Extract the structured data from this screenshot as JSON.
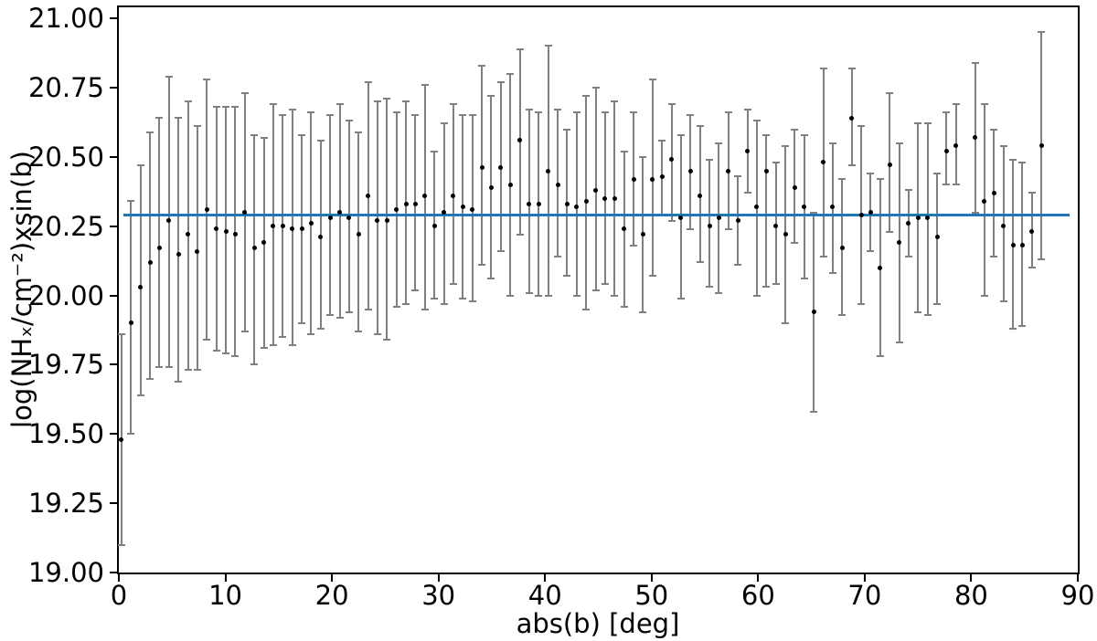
{
  "figure": {
    "background": "#ffffff",
    "spine_color": "#000000",
    "text_color": "#000000"
  },
  "chart_data": {
    "type": "scatter",
    "title": "",
    "xlabel": "abs(b) [deg]",
    "ylabel": "log(NHₓ/cm⁻²)xsin(b)",
    "xlim": [
      0,
      90
    ],
    "ylim": [
      19.0,
      21.04
    ],
    "grid": false,
    "legend": null,
    "x_axis": {
      "tick_values": [
        0,
        10,
        20,
        30,
        40,
        50,
        60,
        70,
        80,
        90
      ],
      "tick_labels": [
        "0",
        "10",
        "20",
        "30",
        "40",
        "50",
        "60",
        "70",
        "80",
        "90"
      ]
    },
    "y_axis": {
      "tick_values": [
        19.0,
        19.25,
        19.5,
        19.75,
        20.0,
        20.25,
        20.5,
        20.75,
        21.0
      ],
      "tick_labels": [
        "19.00",
        "19.25",
        "19.50",
        "19.75",
        "20.00",
        "20.25",
        "20.50",
        "20.75",
        "21.00"
      ]
    },
    "hline": {
      "value": 20.29,
      "color": "#1f77b4"
    },
    "style": {
      "marker_color": "#000000",
      "errorbar_color": "#808080",
      "marker": "point",
      "cap_style": "flat"
    },
    "points_format": [
      "x_deg",
      "y",
      "err_low",
      "err_high"
    ],
    "points": [
      [
        0.25,
        19.48,
        19.1,
        19.86
      ],
      [
        1.14,
        19.9,
        19.5,
        20.34
      ],
      [
        2.03,
        20.03,
        19.64,
        20.47
      ],
      [
        2.92,
        20.12,
        19.7,
        20.59
      ],
      [
        3.81,
        20.17,
        19.74,
        20.64
      ],
      [
        4.7,
        20.27,
        19.74,
        20.79
      ],
      [
        5.59,
        20.15,
        19.69,
        20.64
      ],
      [
        6.48,
        20.22,
        19.73,
        20.7
      ],
      [
        7.37,
        20.16,
        19.73,
        20.61
      ],
      [
        8.26,
        20.31,
        19.84,
        20.78
      ],
      [
        9.15,
        20.24,
        19.8,
        20.68
      ],
      [
        10.04,
        20.23,
        19.79,
        20.68
      ],
      [
        10.93,
        20.22,
        19.78,
        20.68
      ],
      [
        11.82,
        20.3,
        19.87,
        20.73
      ],
      [
        12.71,
        20.17,
        19.75,
        20.58
      ],
      [
        13.6,
        20.19,
        19.81,
        20.57
      ],
      [
        14.49,
        20.25,
        19.82,
        20.69
      ],
      [
        15.38,
        20.25,
        19.85,
        20.65
      ],
      [
        16.27,
        20.24,
        19.82,
        20.67
      ],
      [
        17.16,
        20.24,
        19.9,
        20.58
      ],
      [
        18.05,
        20.26,
        19.86,
        20.66
      ],
      [
        18.94,
        20.21,
        19.88,
        20.56
      ],
      [
        19.83,
        20.28,
        19.93,
        20.65
      ],
      [
        20.72,
        20.3,
        19.92,
        20.69
      ],
      [
        21.61,
        20.28,
        19.94,
        20.63
      ],
      [
        22.5,
        20.22,
        19.87,
        20.59
      ],
      [
        23.39,
        20.36,
        19.95,
        20.77
      ],
      [
        24.28,
        20.27,
        19.86,
        20.7
      ],
      [
        25.17,
        20.27,
        19.84,
        20.71
      ],
      [
        26.06,
        20.31,
        19.96,
        20.66
      ],
      [
        26.95,
        20.33,
        19.97,
        20.7
      ],
      [
        27.84,
        20.33,
        20.02,
        20.65
      ],
      [
        28.73,
        20.36,
        19.95,
        20.76
      ],
      [
        29.62,
        20.25,
        19.99,
        20.52
      ],
      [
        30.51,
        20.3,
        19.97,
        20.62
      ],
      [
        31.4,
        20.36,
        20.04,
        20.69
      ],
      [
        32.29,
        20.32,
        19.99,
        20.65
      ],
      [
        33.18,
        20.31,
        19.98,
        20.65
      ],
      [
        34.07,
        20.46,
        20.11,
        20.83
      ],
      [
        34.96,
        20.39,
        20.06,
        20.72
      ],
      [
        35.85,
        20.46,
        20.16,
        20.77
      ],
      [
        36.74,
        20.4,
        20.0,
        20.8
      ],
      [
        37.63,
        20.56,
        20.22,
        20.89
      ],
      [
        38.52,
        20.33,
        20.01,
        20.67
      ],
      [
        39.41,
        20.33,
        20.0,
        20.66
      ],
      [
        40.3,
        20.45,
        20.0,
        20.9
      ],
      [
        41.19,
        20.4,
        20.14,
        20.67
      ],
      [
        42.08,
        20.33,
        20.07,
        20.6
      ],
      [
        42.97,
        20.32,
        20.0,
        20.66
      ],
      [
        43.86,
        20.34,
        19.95,
        20.72
      ],
      [
        44.75,
        20.38,
        20.02,
        20.75
      ],
      [
        45.64,
        20.35,
        20.04,
        20.66
      ],
      [
        46.53,
        20.35,
        20.0,
        20.7
      ],
      [
        47.42,
        20.24,
        19.96,
        20.52
      ],
      [
        48.31,
        20.42,
        20.18,
        20.66
      ],
      [
        49.2,
        20.22,
        19.94,
        20.5
      ],
      [
        50.09,
        20.42,
        20.07,
        20.78
      ],
      [
        50.98,
        20.43,
        20.29,
        20.56
      ],
      [
        51.87,
        20.49,
        20.27,
        20.69
      ],
      [
        52.76,
        20.28,
        19.99,
        20.58
      ],
      [
        53.65,
        20.45,
        20.24,
        20.65
      ],
      [
        54.54,
        20.36,
        20.12,
        20.61
      ],
      [
        55.43,
        20.25,
        20.03,
        20.49
      ],
      [
        56.32,
        20.28,
        20.01,
        20.55
      ],
      [
        57.21,
        20.45,
        20.24,
        20.66
      ],
      [
        58.1,
        20.27,
        20.11,
        20.43
      ],
      [
        58.99,
        20.52,
        20.37,
        20.67
      ],
      [
        59.88,
        20.32,
        20.0,
        20.63
      ],
      [
        60.77,
        20.45,
        20.03,
        20.58
      ],
      [
        61.66,
        20.25,
        20.04,
        20.48
      ],
      [
        62.55,
        20.22,
        19.9,
        20.54
      ],
      [
        63.44,
        20.39,
        20.19,
        20.6
      ],
      [
        64.33,
        20.32,
        20.06,
        20.58
      ],
      [
        65.22,
        19.94,
        19.58,
        20.3
      ],
      [
        66.11,
        20.48,
        20.14,
        20.82
      ],
      [
        67.0,
        20.32,
        20.08,
        20.55
      ],
      [
        67.89,
        20.17,
        19.93,
        20.42
      ],
      [
        68.78,
        20.64,
        20.47,
        20.82
      ],
      [
        69.67,
        20.29,
        19.97,
        20.61
      ],
      [
        70.56,
        20.3,
        20.16,
        20.44
      ],
      [
        71.45,
        20.1,
        19.78,
        20.42
      ],
      [
        72.34,
        20.47,
        20.23,
        20.73
      ],
      [
        73.23,
        20.19,
        19.83,
        20.55
      ],
      [
        74.12,
        20.26,
        20.14,
        20.38
      ],
      [
        75.01,
        20.28,
        19.94,
        20.62
      ],
      [
        75.9,
        20.28,
        19.93,
        20.62
      ],
      [
        76.79,
        20.21,
        19.97,
        20.44
      ],
      [
        77.68,
        20.52,
        20.4,
        20.66
      ],
      [
        78.57,
        20.54,
        20.4,
        20.69
      ],
      [
        80.35,
        20.57,
        20.3,
        20.84
      ],
      [
        81.24,
        20.34,
        20.0,
        20.69
      ],
      [
        82.13,
        20.37,
        20.14,
        20.6
      ],
      [
        83.02,
        20.25,
        19.98,
        20.54
      ],
      [
        83.91,
        20.18,
        19.88,
        20.49
      ],
      [
        84.8,
        20.18,
        19.89,
        20.48
      ],
      [
        85.69,
        20.23,
        20.1,
        20.37
      ],
      [
        86.58,
        20.54,
        20.13,
        20.95
      ]
    ]
  }
}
